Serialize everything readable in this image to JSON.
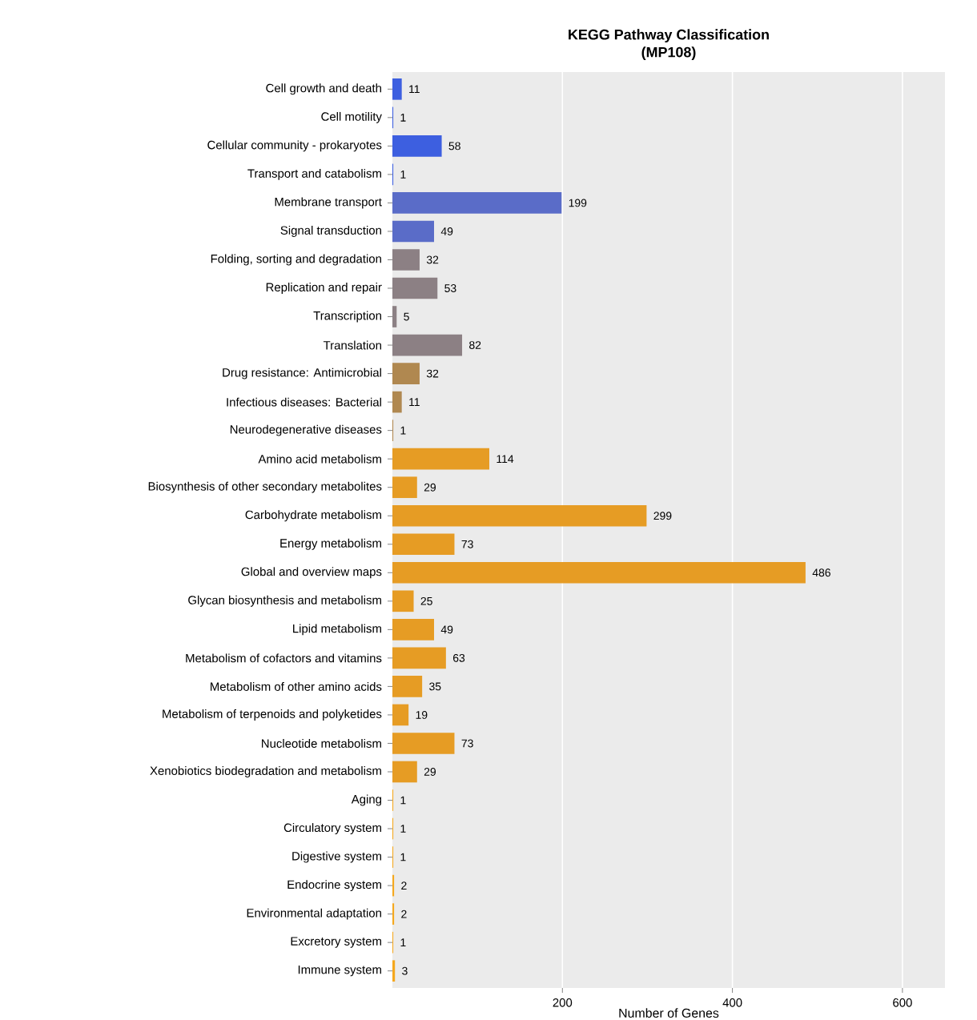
{
  "chart_data": {
    "type": "bar",
    "orientation": "horizontal",
    "title": "KEGG Pathway Classification",
    "subtitle": "(MP108)",
    "xlabel": "Number of Genes",
    "categories": [
      "Cell growth and death",
      "Cell motility",
      "Cellular community - prokaryotes",
      "Transport and catabolism",
      "Membrane transport",
      "Signal transduction",
      "Folding, sorting and degradation",
      "Replication and repair",
      "Transcription",
      "Translation",
      "Drug resistance: Antimicrobial",
      "Infectious diseases: Bacterial",
      "Neurodegenerative diseases",
      "Amino acid metabolism",
      "Biosynthesis of other secondary metabolites",
      "Carbohydrate metabolism",
      "Energy metabolism",
      "Global and overview maps",
      "Glycan biosynthesis and metabolism",
      "Lipid metabolism",
      "Metabolism of cofactors and vitamins",
      "Metabolism of other amino acids",
      "Metabolism of terpenoids and polyketides",
      "Nucleotide metabolism",
      "Xenobiotics biodegradation and metabolism",
      "Aging",
      "Circulatory system",
      "Digestive system",
      "Endocrine system",
      "Environmental adaptation",
      "Excretory system",
      "Immune system"
    ],
    "values": [
      11,
      1,
      58,
      1,
      199,
      49,
      32,
      53,
      5,
      82,
      32,
      11,
      1,
      114,
      29,
      299,
      73,
      486,
      25,
      49,
      63,
      35,
      19,
      73,
      29,
      1,
      1,
      1,
      2,
      2,
      1,
      3
    ],
    "colors": [
      "#3d5fe0",
      "#3d5fe0",
      "#3d5fe0",
      "#3d5fe0",
      "#5a6cc8",
      "#5a6cc8",
      "#8c8084",
      "#8c8084",
      "#8c8084",
      "#8c8084",
      "#b08850",
      "#b08850",
      "#b08850",
      "#e69c24",
      "#e69c24",
      "#e69c24",
      "#e69c24",
      "#e69c24",
      "#e69c24",
      "#e69c24",
      "#e69c24",
      "#e69c24",
      "#e69c24",
      "#e69c24",
      "#e69c24",
      "#f5a81e",
      "#f5a81e",
      "#f5a81e",
      "#f5a81e",
      "#f5a81e",
      "#f5a81e",
      "#f5a81e"
    ],
    "xlim": [
      0,
      650
    ],
    "xticks": [
      200,
      400,
      600
    ],
    "grid": "x",
    "data_labels": true
  }
}
